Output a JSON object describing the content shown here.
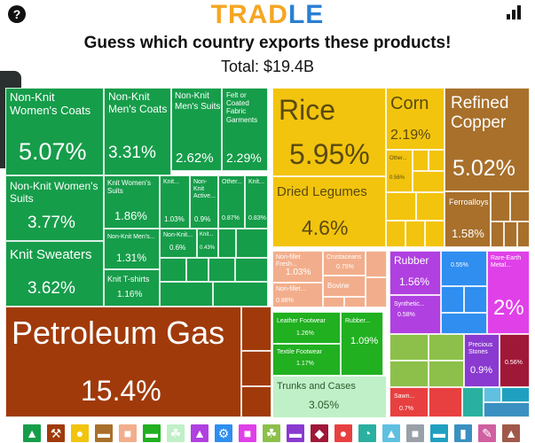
{
  "header": {
    "logo_part1": "TRAD",
    "logo_part2": "LE",
    "help_glyph": "?"
  },
  "question": "Guess which country exports these products!",
  "total": "Total: $19.4B",
  "tiles": {
    "nonknit_womens_coats": {
      "name": "Non-Knit Women's Coats",
      "value": "5.07%"
    },
    "nonknit_mens_coats": {
      "name": "Non-Knit Men's Coats",
      "value": "3.31%"
    },
    "nonknit_mens_suits": {
      "name": "Non-Knit Men's Suits",
      "value": "2.62%"
    },
    "felt_coated": {
      "name": "Felt or Coated Fabric Garments",
      "value": "2.29%"
    },
    "nonknit_womens_suits": {
      "name": "Non-Knit Women's Suits",
      "value": "3.77%"
    },
    "knit_womens_suits": {
      "name": "Knit Women's Suits",
      "value": "1.86%"
    },
    "knit_a": {
      "name": "Knit...",
      "value": "1.03%"
    },
    "nonknit_active": {
      "name": "Non-Knit Active...",
      "value": "0.9%"
    },
    "other_a": {
      "name": "Other...",
      "value": "0.87%"
    },
    "knit_b": {
      "name": "Knit...",
      "value": "0.83%"
    },
    "knit_sweaters": {
      "name": "Knit Sweaters",
      "value": "3.62%"
    },
    "nonknit_mens": {
      "name": "Non-Knit Men's...",
      "value": "1.31%"
    },
    "nonknit_c": {
      "name": "Non-Knit...",
      "value": "0.6%"
    },
    "knit_c": {
      "name": "Knit...",
      "value": "0.43%"
    },
    "knit_tshirts": {
      "name": "Knit T-shirts",
      "value": "1.16%"
    },
    "petroleum_gas": {
      "name": "Petroleum Gas",
      "value": "15.4%"
    },
    "rice": {
      "name": "Rice",
      "value": "5.95%"
    },
    "corn": {
      "name": "Corn",
      "value": "2.19%"
    },
    "other_b": {
      "name": "Other...",
      "value": "0.56%"
    },
    "dried_legumes": {
      "name": "Dried Legumes",
      "value": "4.6%"
    },
    "refined_copper": {
      "name": "Refined Copper",
      "value": "5.02%"
    },
    "ferroalloys": {
      "name": "Ferroalloys",
      "value": "1.58%"
    },
    "nonfillet_fresh": {
      "name": "Non-fillet Fresh...",
      "value": "1.03%"
    },
    "crustaceans": {
      "name": "Crustaceans",
      "value": "0.75%"
    },
    "nonfillet_b": {
      "name": "Non-fillet...",
      "value": "0.88%"
    },
    "bovine": {
      "name": "Bovine"
    },
    "rubber": {
      "name": "Rubber",
      "value": "1.56%"
    },
    "blue_small": {
      "value": "0.55%"
    },
    "rare_earth": {
      "name": "Rare-Earth Metal...",
      "value": "2%"
    },
    "synthetic": {
      "name": "Synthetic...",
      "value": "0.58%"
    },
    "leather_footwear": {
      "name": "Leather Footwear",
      "value": "1.26%"
    },
    "rubber_b": {
      "name": "Rubber...",
      "value": "1.09%"
    },
    "textile_footwear": {
      "name": "Textile Footwear",
      "value": "1.17%"
    },
    "trunks_cases": {
      "name": "Trunks and Cases",
      "value": "3.05%"
    },
    "precious_stones": {
      "name": "Precious Stones",
      "value": "0.9%"
    },
    "small_056": {
      "value": "0.56%"
    },
    "sawn": {
      "name": "Sawn...",
      "value": "0.7%"
    }
  },
  "category_icons": [
    "shirt-icon",
    "pickaxe-icon",
    "fruit-icon",
    "anvil-icon",
    "cow-icon",
    "shoe-icon",
    "leaf-icon",
    "flask-icon",
    "gear-icon",
    "cart-icon",
    "wheat-icon",
    "car-icon",
    "diamond-icon",
    "mask-icon",
    "gauge-icon",
    "road-icon",
    "box-icon",
    "stamp-icon",
    "battery-icon",
    "brush-icon",
    "easel-icon"
  ],
  "colors": {
    "brand_orange": "#f5a623",
    "textiles": "#169d4a",
    "mineral": "#a03a0a",
    "vegetable": "#f2c40e",
    "metal": "#a8702b",
    "animal": "#f2ae8c",
    "chemical": "#b040e0",
    "plastic": "#2f8ef0",
    "footwear": "#20b020",
    "hides": "#c0f0c8",
    "stone": "#8a3ad0",
    "wood": "#e84040"
  }
}
